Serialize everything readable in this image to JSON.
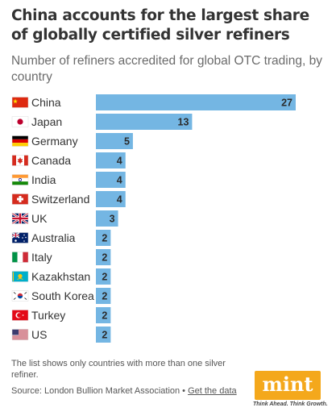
{
  "title": "China accounts for the largest share of globally certified silver refiners",
  "subtitle": "Number of refiners accredited for global OTC trading, by country",
  "chart_data": {
    "type": "bar",
    "orientation": "horizontal",
    "categories": [
      "China",
      "Japan",
      "Germany",
      "Canada",
      "India",
      "Switzerland",
      "UK",
      "Australia",
      "Italy",
      "Kazakhstan",
      "South Korea",
      "Turkey",
      "US"
    ],
    "values": [
      27,
      13,
      5,
      4,
      4,
      4,
      3,
      2,
      2,
      2,
      2,
      2,
      2
    ],
    "flags": [
      "china-flag-icon",
      "japan-flag-icon",
      "germany-flag-icon",
      "canada-flag-icon",
      "india-flag-icon",
      "switzerland-flag-icon",
      "uk-flag-icon",
      "australia-flag-icon",
      "italy-flag-icon",
      "kazakhstan-flag-icon",
      "south-korea-flag-icon",
      "turkey-flag-icon",
      "us-flag-icon"
    ],
    "xlim": [
      0,
      27
    ],
    "bar_color": "#74b6e3",
    "grid": false,
    "data_labels": true
  },
  "footer": {
    "note": "The list shows only countries with more than one silver refiner.",
    "source_prefix": "Source: London Bullion Market Association • ",
    "source_link": "Get the data"
  },
  "logo": {
    "word": "mint",
    "tagline": "Think Ahead. Think Growth.",
    "color": "#f4a81c"
  }
}
